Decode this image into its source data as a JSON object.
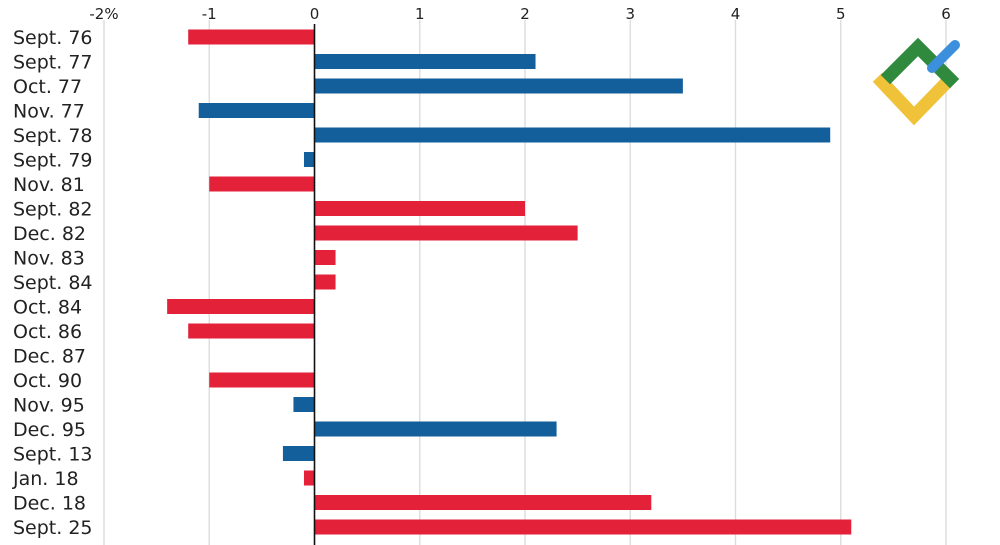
{
  "chart_data": {
    "type": "bar",
    "orientation": "horizontal",
    "title": "",
    "xlabel": "",
    "ylabel": "",
    "xlim": [
      -2,
      6
    ],
    "x_ticks": [
      {
        "value": -2,
        "label": "-2%"
      },
      {
        "value": -1,
        "label": "-1"
      },
      {
        "value": 0,
        "label": "0"
      },
      {
        "value": 1,
        "label": "1"
      },
      {
        "value": 2,
        "label": "2"
      },
      {
        "value": 3,
        "label": "3"
      },
      {
        "value": 4,
        "label": "4"
      },
      {
        "value": 5,
        "label": "5"
      },
      {
        "value": 6,
        "label": "6"
      }
    ],
    "grid": true,
    "colors": {
      "blue": "#135f9b",
      "red": "#e3223a"
    },
    "bars": [
      {
        "category": "Sept. 76",
        "value": -1.2,
        "color": "red"
      },
      {
        "category": "Sept. 77",
        "value": 2.1,
        "color": "blue"
      },
      {
        "category": "Oct. 77",
        "value": 3.5,
        "color": "blue"
      },
      {
        "category": "Nov. 77",
        "value": -1.1,
        "color": "blue"
      },
      {
        "category": "Sept. 78",
        "value": 4.9,
        "color": "blue"
      },
      {
        "category": "Sept. 79",
        "value": -0.1,
        "color": "blue"
      },
      {
        "category": "Nov. 81",
        "value": -1.0,
        "color": "red"
      },
      {
        "category": "Sept. 82",
        "value": 2.0,
        "color": "red"
      },
      {
        "category": "Dec. 82",
        "value": 2.5,
        "color": "red"
      },
      {
        "category": "Nov. 83",
        "value": 0.2,
        "color": "red"
      },
      {
        "category": "Sept. 84",
        "value": 0.2,
        "color": "red"
      },
      {
        "category": "Oct. 84",
        "value": -1.4,
        "color": "red"
      },
      {
        "category": "Oct. 86",
        "value": -1.2,
        "color": "red"
      },
      {
        "category": "Dec. 87",
        "value": 0.0,
        "color": "red"
      },
      {
        "category": "Oct. 90",
        "value": -1.0,
        "color": "red"
      },
      {
        "category": "Nov. 95",
        "value": -0.2,
        "color": "blue"
      },
      {
        "category": "Dec. 95",
        "value": 2.3,
        "color": "blue"
      },
      {
        "category": "Sept. 13",
        "value": -0.3,
        "color": "blue"
      },
      {
        "category": "Jan. 18",
        "value": -0.1,
        "color": "red"
      },
      {
        "category": "Dec. 18",
        "value": 3.2,
        "color": "red"
      },
      {
        "category": "Sept. 25",
        "value": 5.1,
        "color": "red"
      }
    ]
  },
  "logo": {
    "colors": {
      "green": "#2f8a3e",
      "blue": "#3b8fdc",
      "yellow": "#f0c23a"
    }
  }
}
